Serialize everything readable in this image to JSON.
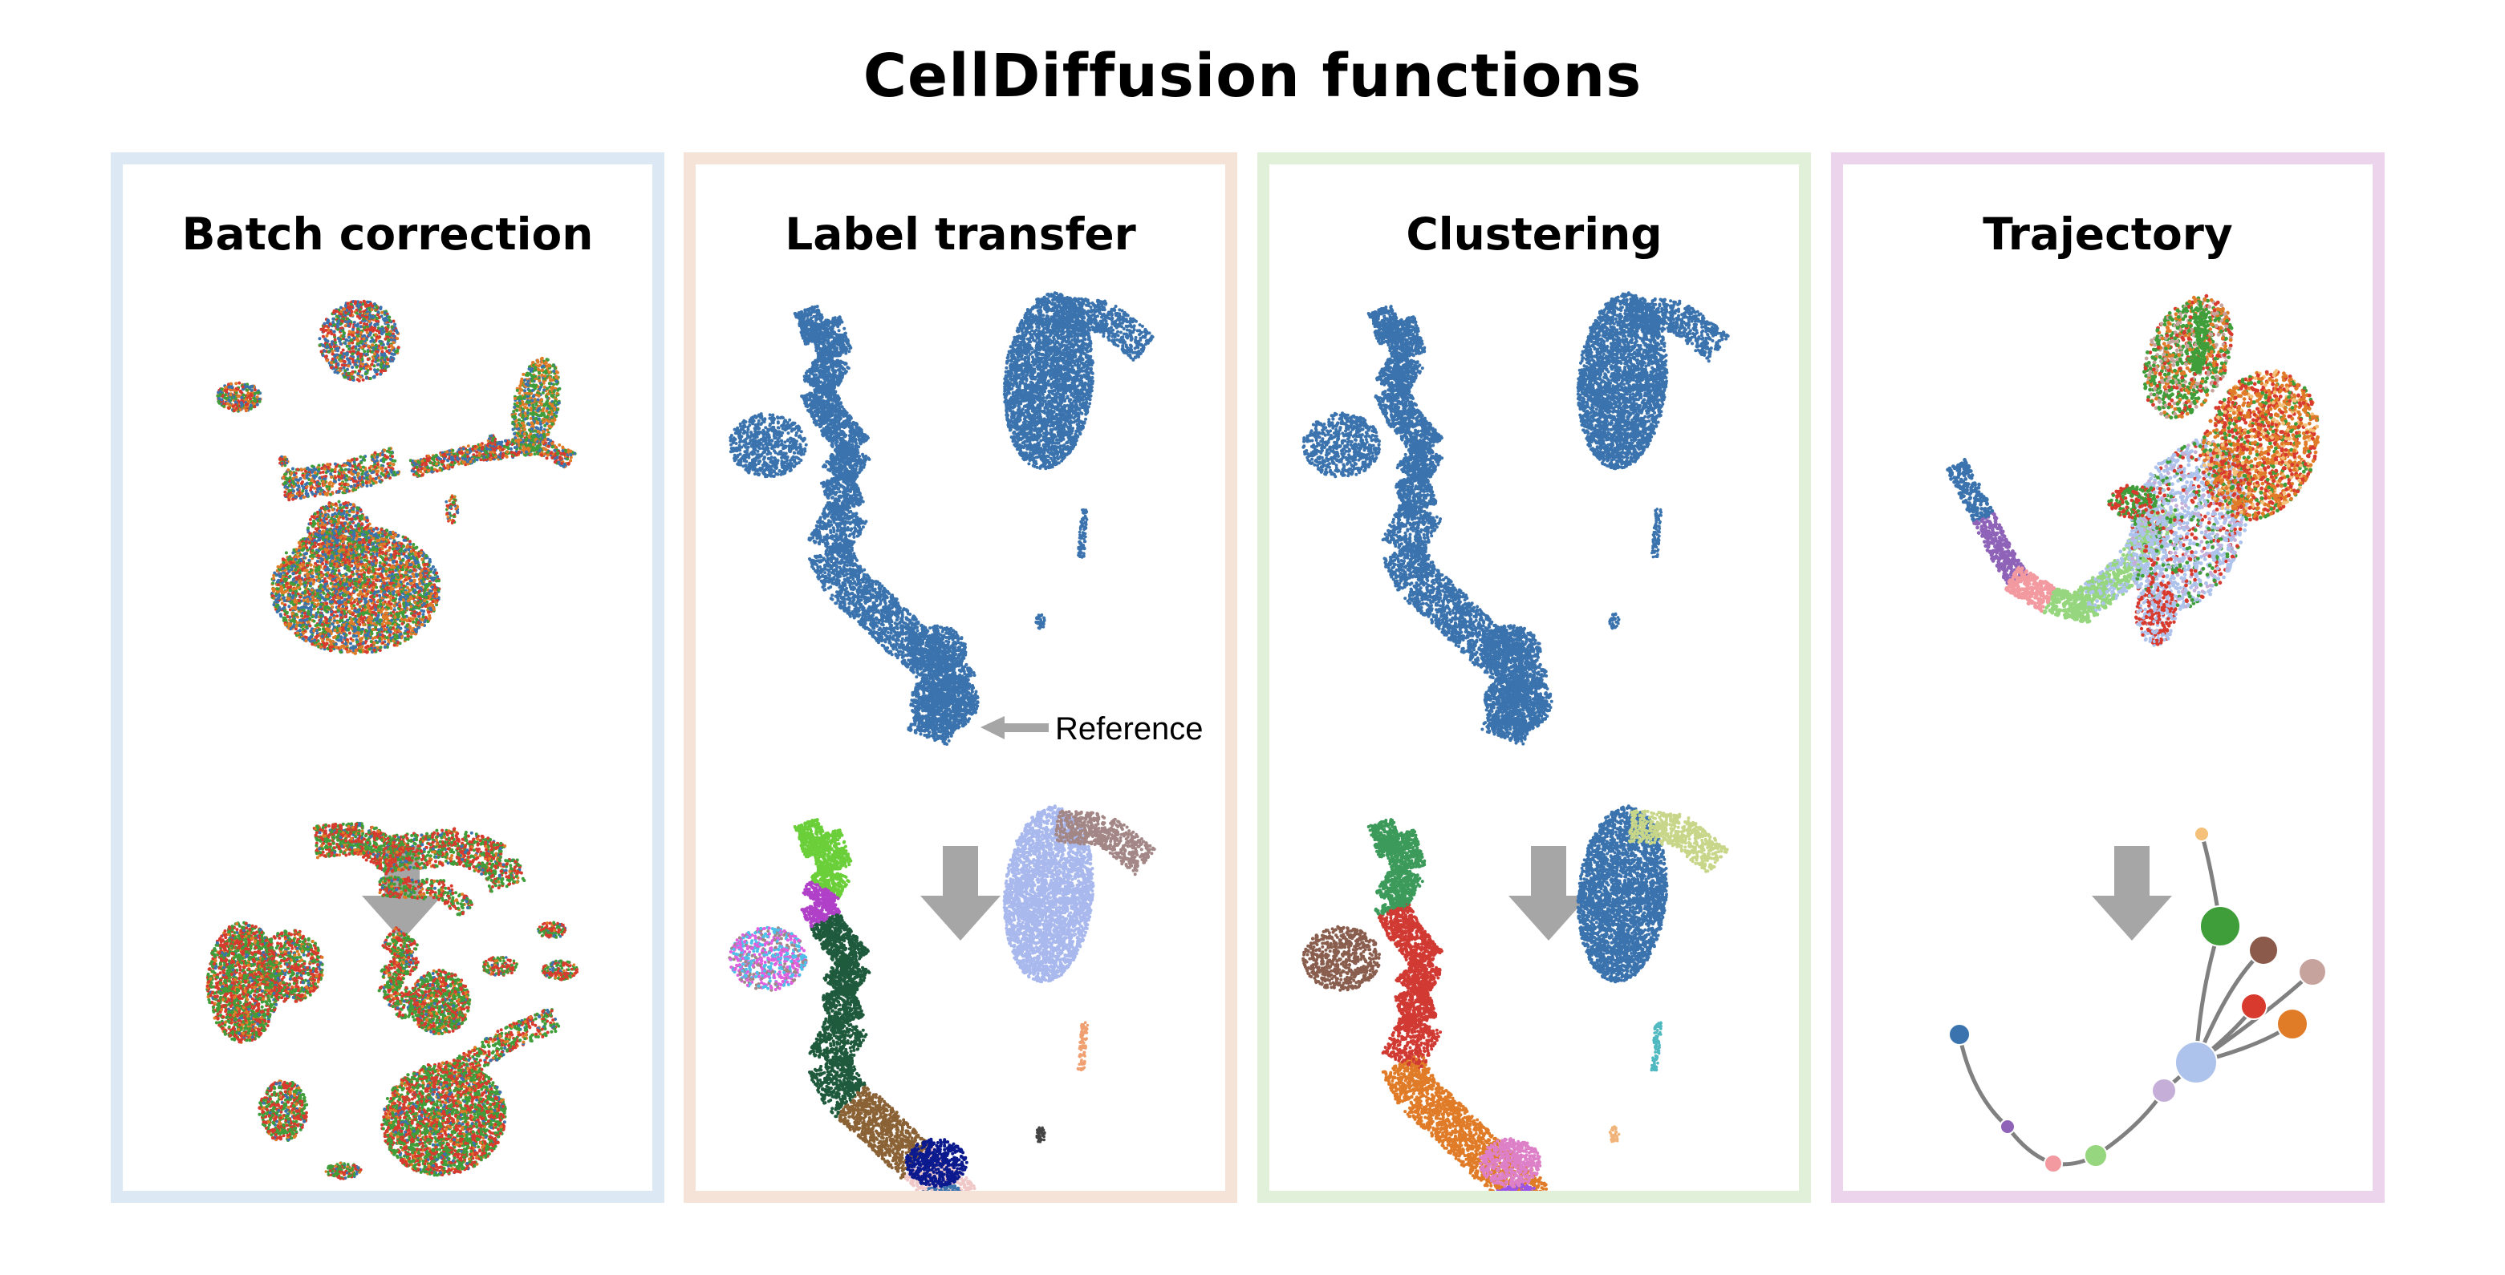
{
  "title": "CellDiffusion functions",
  "panels": [
    {
      "id": "batch",
      "title": "Batch correction",
      "border_color": "#dde8f5"
    },
    {
      "id": "label",
      "title": "Label transfer",
      "border_color": "#f5e3d8"
    },
    {
      "id": "cluster",
      "title": "Clustering",
      "border_color": "#e1f0d8"
    },
    {
      "id": "traj",
      "title": "Trajectory",
      "border_color": "#ecd5ec"
    }
  ],
  "reference_label": "Reference",
  "colors": {
    "arrow": "#a6a6a6",
    "umap_blue": "#3b73ae",
    "batch": [
      "#3b73ae",
      "#d83a2e",
      "#3f9e3a",
      "#e07b28"
    ],
    "label_types": [
      "#6bcf3a",
      "#1f5a3d",
      "#8a6235",
      "#f0c8c8",
      "#0b1a8e",
      "#a9b9ee",
      "#a38686",
      "#e060e0",
      "#4fc0e8",
      "#b040c8",
      "#f0a070"
    ],
    "clusters": [
      "#3c9a5a",
      "#d13a33",
      "#e07b28",
      "#9a55e8",
      "#dd80c8",
      "#8a5e4e",
      "#c8d68a",
      "#4fb8c0",
      "#f0b47a",
      "#3b73ae"
    ],
    "trajectory_nodes": [
      "#3b73ae",
      "#8e63b8",
      "#f29aa0",
      "#96d67e",
      "#c5afd8",
      "#adc3ec",
      "#3f9e3a",
      "#8b5a4a",
      "#d83a2e",
      "#e07b28",
      "#c7a39e",
      "#f5c07a"
    ]
  }
}
